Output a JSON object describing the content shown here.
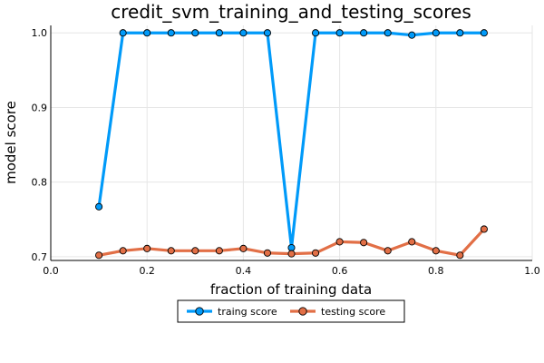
{
  "chart_data": {
    "type": "line",
    "title": "credit_svm_training_and_testing_scores",
    "xlabel": "fraction of training data",
    "ylabel": "model score",
    "xlim": [
      0.0,
      1.0
    ],
    "ylim": [
      0.695,
      1.01
    ],
    "xticks": [
      0.0,
      0.2,
      0.4,
      0.6,
      0.8,
      1.0
    ],
    "xtick_labels": [
      "0.0",
      "0.2",
      "0.4",
      "0.6",
      "0.8",
      "1.0"
    ],
    "yticks": [
      0.7,
      0.8,
      0.9,
      1.0
    ],
    "ytick_labels": [
      "0.7",
      "0.8",
      "0.9",
      "1.0"
    ],
    "grid": true,
    "legend_position": "bottom-center",
    "x": [
      0.1,
      0.15,
      0.2,
      0.25,
      0.3,
      0.35,
      0.4,
      0.45,
      0.5,
      0.55,
      0.6,
      0.65,
      0.7,
      0.75,
      0.8,
      0.85,
      0.9
    ],
    "series": [
      {
        "name": "traing score",
        "color": "#009af9",
        "values": [
          0.767,
          1.0,
          1.0,
          1.0,
          1.0,
          1.0,
          1.0,
          1.0,
          0.712,
          1.0,
          1.0,
          1.0,
          1.0,
          0.997,
          1.0,
          1.0,
          1.0
        ]
      },
      {
        "name": "testing score",
        "color": "#e26f46",
        "values": [
          0.702,
          0.708,
          0.711,
          0.708,
          0.708,
          0.708,
          0.711,
          0.705,
          0.704,
          0.705,
          0.72,
          0.719,
          0.708,
          0.72,
          0.708,
          0.702,
          0.737
        ]
      }
    ]
  }
}
